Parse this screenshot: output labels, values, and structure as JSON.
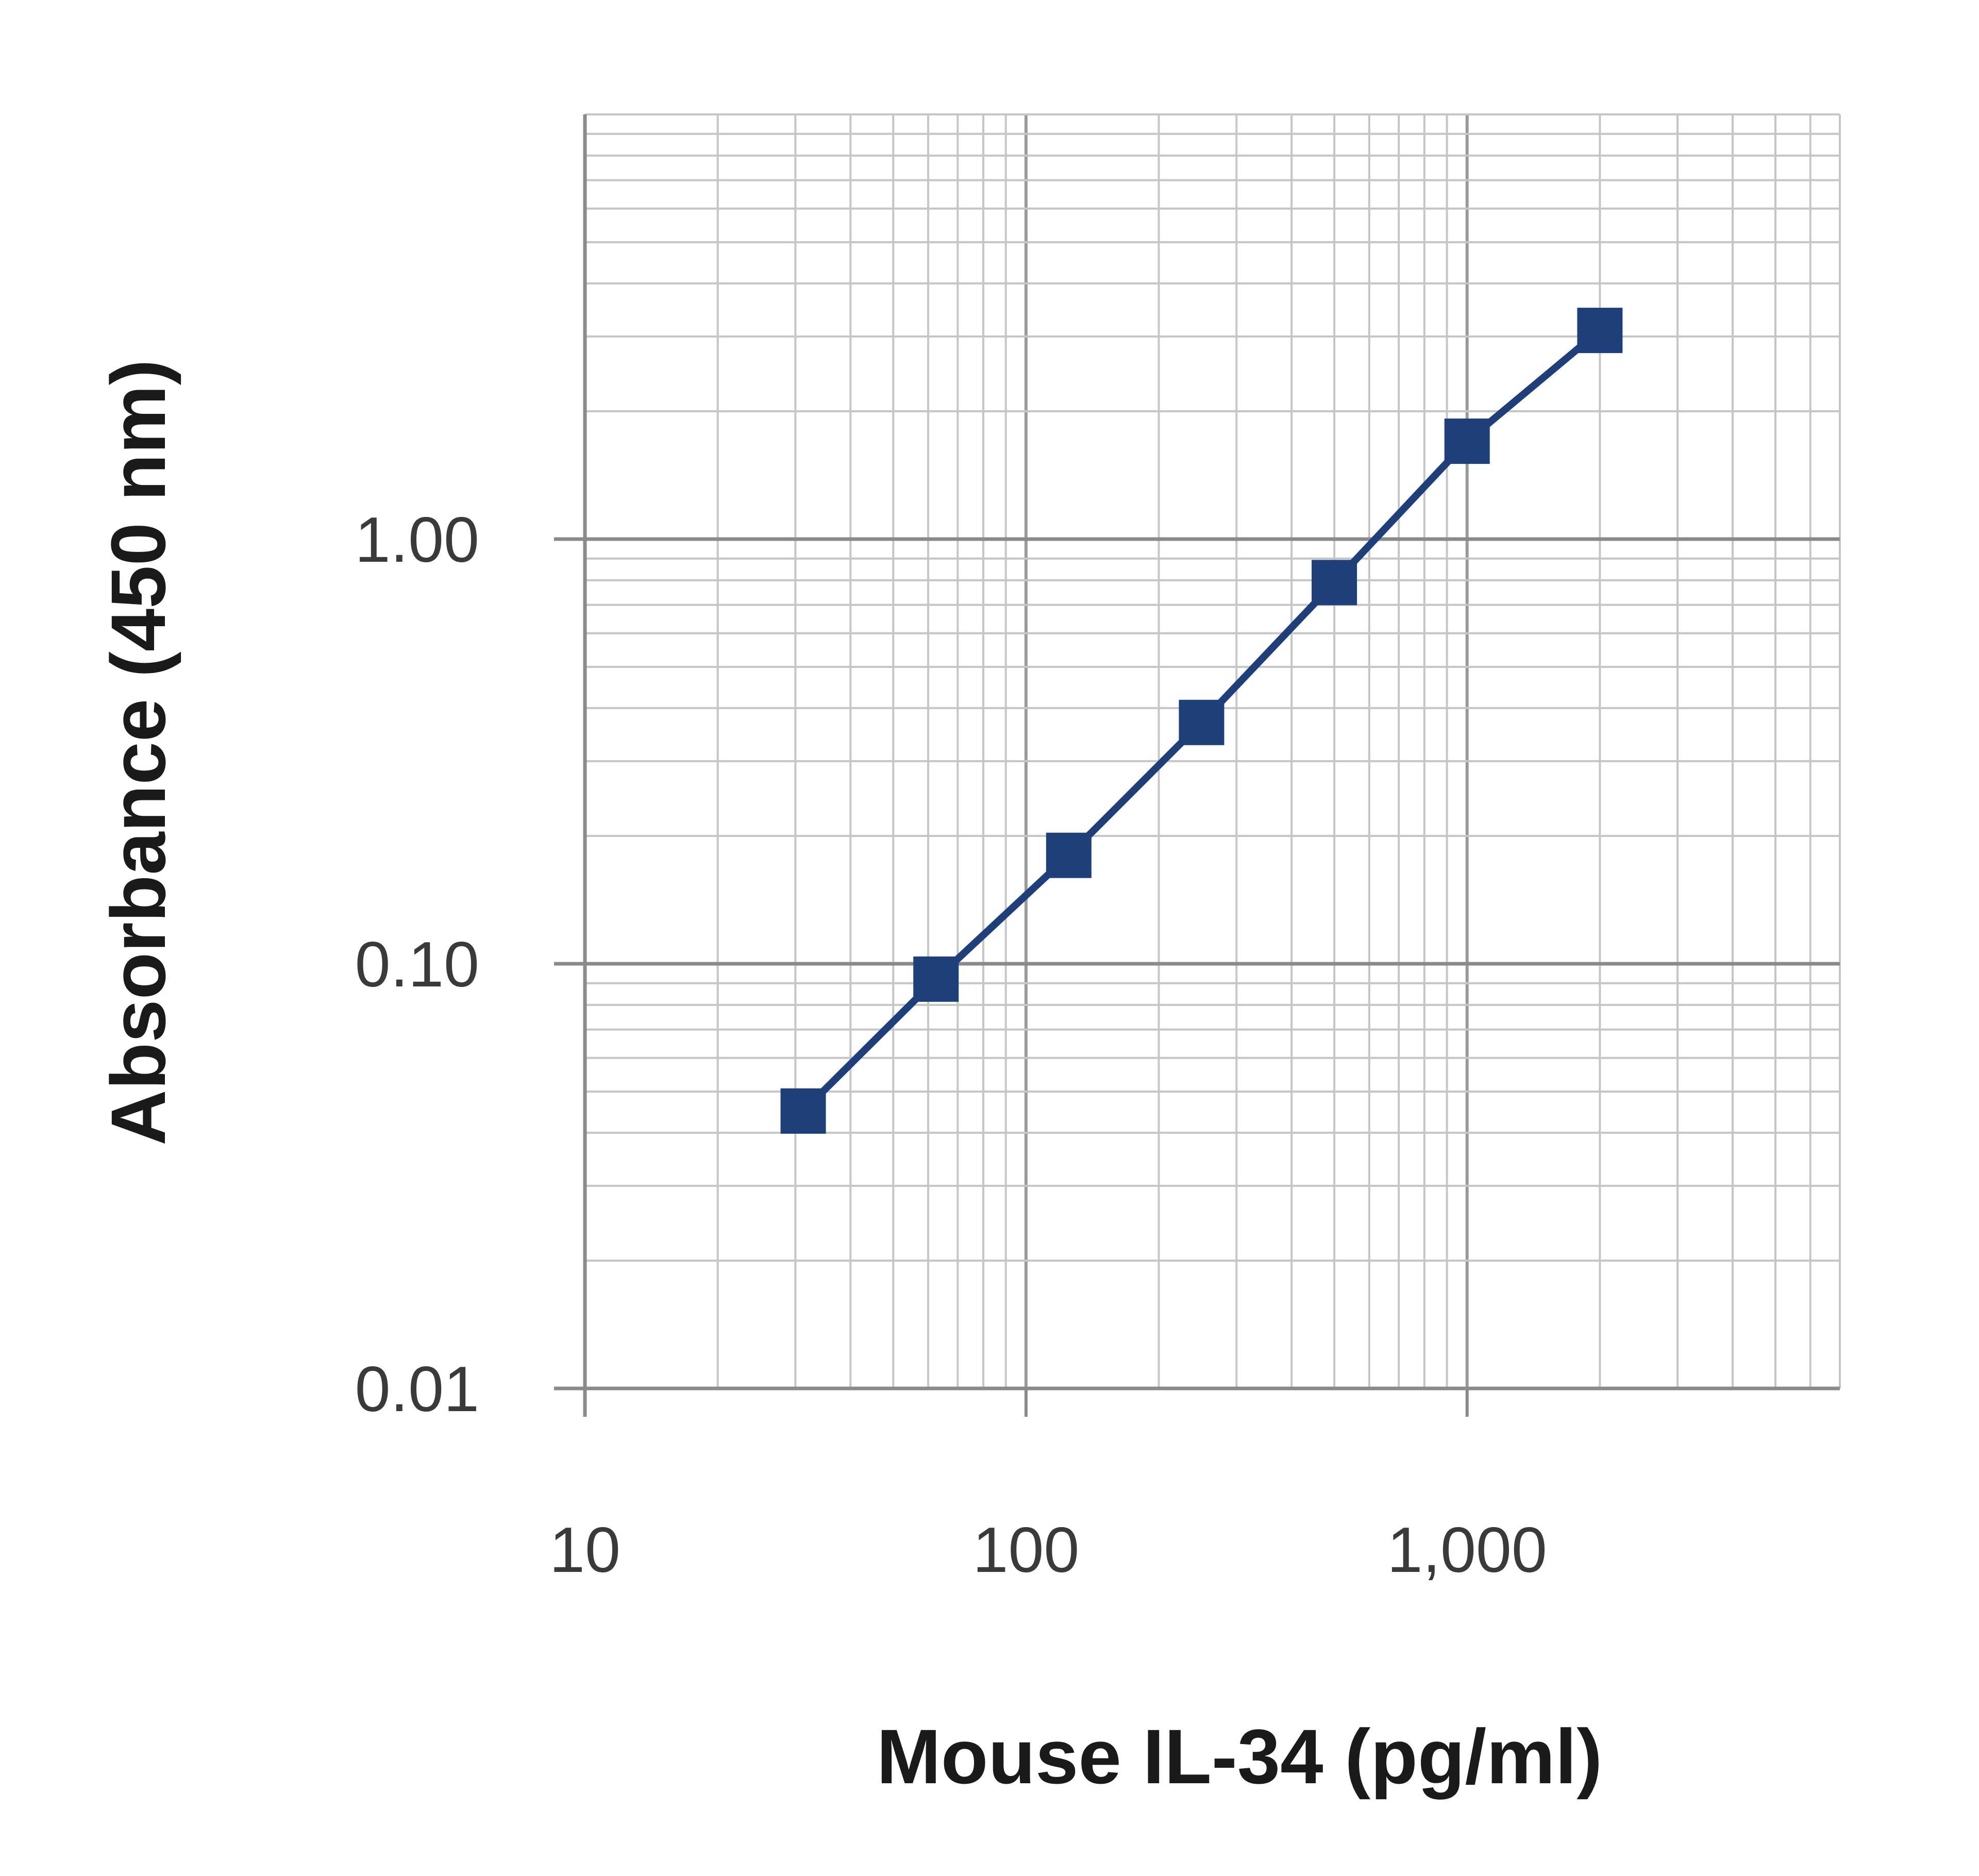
{
  "chart_data": {
    "type": "line",
    "title": "",
    "xlabel": "Mouse IL-34 (pg/ml)",
    "ylabel": "Absorbance (450 nm)",
    "x_scale": "log",
    "y_scale": "log",
    "xlim": [
      10,
      7000
    ],
    "ylim": [
      0.01,
      10
    ],
    "x_ticks": [
      10,
      100,
      1000
    ],
    "x_tick_labels": [
      "10",
      "100",
      "1,000"
    ],
    "y_ticks": [
      0.01,
      0.1,
      1
    ],
    "y_tick_labels": [
      "0.01",
      "0.10",
      "1.00"
    ],
    "grid": true,
    "legend": "none",
    "series_color": "#1f3f7a",
    "marker": "square",
    "series": [
      {
        "x": [
          31.25,
          62.5,
          125,
          250,
          500,
          1000,
          2000
        ],
        "y": [
          0.045,
          0.092,
          0.18,
          0.37,
          0.79,
          1.7,
          3.1
        ]
      }
    ]
  }
}
